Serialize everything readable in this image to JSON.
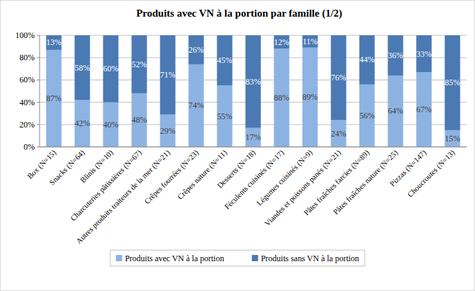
{
  "chart_data": {
    "type": "bar",
    "title": "Produits avec VN à la portion par famille (1/2)",
    "categories": [
      "Box (N=15)",
      "Snacks (N=64)",
      "Blinis (N=10)",
      "Charcuteries pâtissières (N=67)",
      "Autres produits traiteurs de la mer (N=21)",
      "Crêpes fourrées (N=23)",
      "Crêpes nature (N=11)",
      "Desserts (N=18)",
      "Féculents cuisinés (N=17)",
      "Légumes cuisinés (N=9)",
      "Viandes et poissons panés (N=21)",
      "Pâtes fraîches farcies (N=89)",
      "Pâtes fraîches nature (N=25)",
      "Pizzas (N=147)",
      "Choucroutes (N=13)"
    ],
    "series": [
      {
        "name": "Produits avec VN à la portion",
        "color": "#8db3e2",
        "values": [
          87,
          42,
          40,
          48,
          29,
          74,
          55,
          17,
          88,
          89,
          24,
          56,
          64,
          67,
          15
        ],
        "value_labels": [
          "87%",
          "42%",
          "40%",
          "48%",
          "29%",
          "74%",
          "55%",
          "17%",
          "88%",
          "89%",
          "24%",
          "56%",
          "64%",
          "67%",
          "15%"
        ]
      },
      {
        "name": "Produits sans VN à la portion",
        "color": "#4a79b4",
        "values": [
          13,
          58,
          60,
          52,
          71,
          26,
          45,
          83,
          12,
          11,
          76,
          44,
          36,
          33,
          85
        ],
        "value_labels": [
          "13%",
          "58%",
          "60%",
          "52%",
          "71%",
          "26%",
          "45%",
          "83%",
          "12%",
          "11%",
          "76%",
          "44%",
          "36%",
          "33%",
          "85%"
        ]
      }
    ],
    "ylim": [
      0,
      100
    ],
    "yticks": [
      {
        "value": 0,
        "label": "0%"
      },
      {
        "value": 20,
        "label": "20%"
      },
      {
        "value": 40,
        "label": "40%"
      },
      {
        "value": 60,
        "label": "60%"
      },
      {
        "value": 80,
        "label": "80%"
      },
      {
        "value": 100,
        "label": "100%"
      }
    ],
    "stacked": true,
    "data_labels": true,
    "grid": true,
    "legend": "bottom"
  }
}
